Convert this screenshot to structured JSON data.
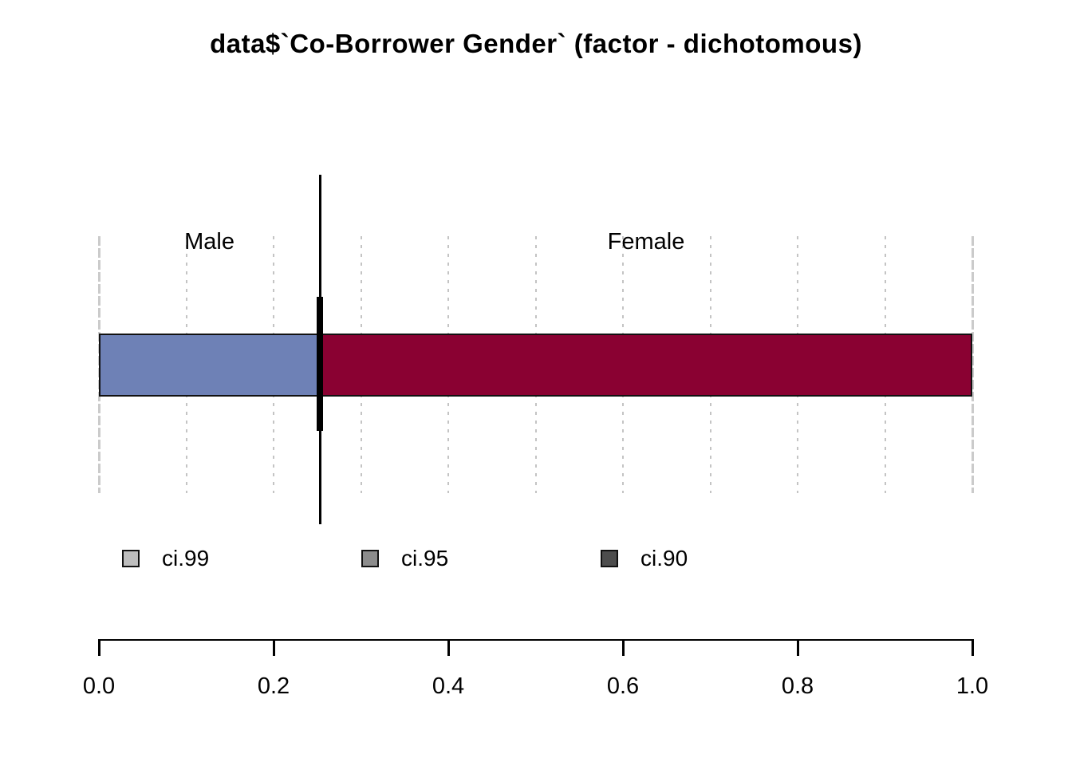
{
  "chart_data": {
    "type": "bar",
    "stacked": true,
    "orientation": "horizontal",
    "title": "data$`Co-Borrower Gender` (factor - dichotomous)",
    "categories": [
      "Male",
      "Female"
    ],
    "values": [
      0.253,
      0.747
    ],
    "estimate_line": 0.253,
    "xlabel": "",
    "ylabel": "",
    "xlim": [
      0.0,
      1.0
    ],
    "grid": true,
    "gridline_values": [
      0.0,
      0.1,
      0.2,
      0.3,
      0.4,
      0.5,
      0.6,
      0.7,
      0.8,
      0.9,
      1.0
    ],
    "x_ticks": [
      {
        "v": 0.0,
        "label": "0.0"
      },
      {
        "v": 0.2,
        "label": "0.2"
      },
      {
        "v": 0.4,
        "label": "0.4"
      },
      {
        "v": 0.6,
        "label": "0.6"
      },
      {
        "v": 0.8,
        "label": "0.8"
      },
      {
        "v": 1.0,
        "label": "1.0"
      }
    ],
    "segment_colors": [
      "#6E81B6",
      "#8A0132"
    ],
    "legend_position": "bottom-left",
    "legend": [
      {
        "label": "ci.99",
        "color": "#BEBEBE"
      },
      {
        "label": "ci.95",
        "color": "#8C8C8C"
      },
      {
        "label": "ci.90",
        "color": "#4D4D4D"
      }
    ]
  }
}
